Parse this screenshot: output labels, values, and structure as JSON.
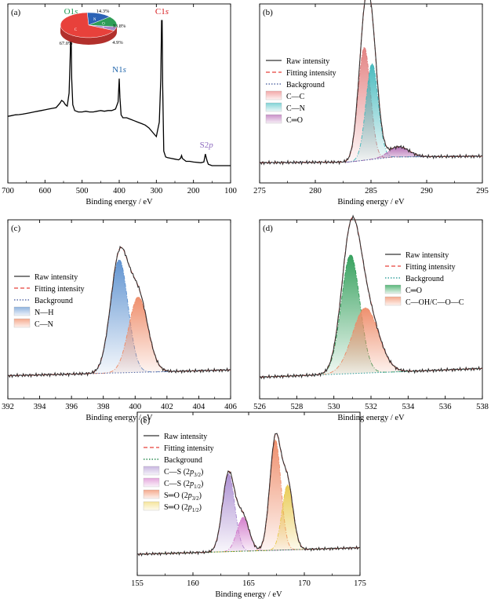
{
  "chart_data": [
    {
      "id": "a",
      "type": "line",
      "panel_label": "(a)",
      "xlabel": "Binding energy / eV",
      "ylabel": "",
      "xlim": [
        700,
        100
      ],
      "x_reversed": true,
      "x_ticks": [
        700,
        600,
        500,
        400,
        300,
        200,
        100
      ],
      "grid": false,
      "series": [
        {
          "color": "#000000",
          "x": [
            700,
            690,
            680,
            670,
            660,
            650,
            640,
            630,
            620,
            610,
            600,
            590,
            580,
            570,
            560,
            555,
            550,
            545,
            540,
            535,
            532,
            530,
            528,
            525,
            520,
            510,
            500,
            490,
            480,
            470,
            460,
            450,
            440,
            430,
            420,
            410,
            403,
            400,
            398,
            395,
            390,
            380,
            370,
            360,
            350,
            340,
            330,
            320,
            310,
            300,
            292,
            288,
            286,
            284.5,
            283,
            280,
            275,
            270,
            260,
            250,
            240,
            235,
            232,
            230,
            225,
            220,
            210,
            200,
            180,
            172,
            168,
            165,
            163,
            160,
            155,
            150,
            140,
            120,
            100
          ],
          "y": [
            0.34,
            0.345,
            0.35,
            0.352,
            0.355,
            0.36,
            0.365,
            0.37,
            0.375,
            0.38,
            0.385,
            0.39,
            0.395,
            0.4,
            0.43,
            0.45,
            0.44,
            0.42,
            0.41,
            0.5,
            0.75,
            1.0,
            0.6,
            0.42,
            0.38,
            0.37,
            0.37,
            0.375,
            0.37,
            0.37,
            0.375,
            0.38,
            0.375,
            0.38,
            0.38,
            0.39,
            0.44,
            0.6,
            0.47,
            0.35,
            0.33,
            0.33,
            0.32,
            0.31,
            0.3,
            0.29,
            0.28,
            0.26,
            0.23,
            0.2,
            0.3,
            0.6,
            1.0,
            1.0,
            0.55,
            0.1,
            0.06,
            0.055,
            0.05,
            0.045,
            0.04,
            0.05,
            0.07,
            0.05,
            0.04,
            0.03,
            0.03,
            0.025,
            0.02,
            0.025,
            0.08,
            0.05,
            0.03,
            0.01,
            0.005,
            0.0,
            0.0,
            0.0,
            0.0
          ]
        }
      ],
      "peak_labels": [
        {
          "text": "O1s",
          "x": 530,
          "color": "#1a9850"
        },
        {
          "text": "N1s",
          "x": 400,
          "color": "#2166ac"
        },
        {
          "text": "C1s",
          "x": 285,
          "color": "#d7191c"
        },
        {
          "text": "S2p",
          "x": 165,
          "color": "#8e6bbf"
        }
      ],
      "inset_pie": {
        "type": "pie",
        "slices": [
          {
            "slice_label": "C",
            "value": 67.0,
            "value_label": "67.0%",
            "color": "#e8413b"
          },
          {
            "slice_label": "N",
            "value": 14.3,
            "value_label": "14.3%",
            "color": "#2c63b5"
          },
          {
            "slice_label": "O",
            "value": 13.8,
            "value_label": "13.8%",
            "color": "#2e9d57"
          },
          {
            "slice_label": "S",
            "value": 4.9,
            "value_label": "4.9%",
            "color": "#a688c9"
          }
        ]
      }
    },
    {
      "id": "b",
      "type": "line",
      "panel_label": "(b)",
      "xlabel": "Binding energy / eV",
      "xlim": [
        275,
        295
      ],
      "x_ticks": [
        275,
        280,
        285,
        290,
        295
      ],
      "grid": false,
      "legend_position": "left",
      "legend": [
        {
          "label": "Raw intensity",
          "kind": "line",
          "color": "#333333"
        },
        {
          "label": "Fitting intensity",
          "kind": "dashed",
          "color": "#e8413b"
        },
        {
          "label": "Background",
          "kind": "dotted",
          "color": "#5b6ea8"
        },
        {
          "label": "C—C",
          "kind": "swatch",
          "color": "#f2a7a7"
        },
        {
          "label": "C—N",
          "kind": "swatch",
          "color": "#7fd3d6"
        },
        {
          "label": "C═O",
          "kind": "swatch",
          "color": "#c98fc8"
        }
      ],
      "background": {
        "x": [
          275,
          283,
          287,
          295
        ],
        "y": [
          0.02,
          0.025,
          0.06,
          0.065
        ]
      },
      "components": [
        {
          "name": "C—C",
          "center": 284.4,
          "height": 0.78,
          "width": 0.55,
          "color": "#e27d7d"
        },
        {
          "name": "C—N",
          "center": 285.1,
          "height": 0.66,
          "width": 0.55,
          "color": "#3fb7bb"
        },
        {
          "name": "C═O",
          "center": 287.5,
          "height": 0.07,
          "width": 0.9,
          "color": "#b36ab3"
        }
      ],
      "ylim": [
        0,
        1.05
      ]
    },
    {
      "id": "c",
      "type": "line",
      "panel_label": "(c)",
      "xlabel": "Binding energy / eV",
      "xlim": [
        392,
        406
      ],
      "x_ticks": [
        392,
        394,
        396,
        398,
        400,
        402,
        404,
        406
      ],
      "grid": false,
      "legend_position": "left",
      "legend": [
        {
          "label": "Raw intensity",
          "kind": "line",
          "color": "#333333"
        },
        {
          "label": "Fitting intensity",
          "kind": "dashed",
          "color": "#e8413b"
        },
        {
          "label": "Background",
          "kind": "dotted",
          "color": "#5b6ea8"
        },
        {
          "label": "N—H",
          "kind": "swatch",
          "color": "#8fb3df"
        },
        {
          "label": "C—N",
          "kind": "swatch",
          "color": "#f5a98c"
        }
      ],
      "background": {
        "x": [
          392,
          406
        ],
        "y": [
          0.04,
          0.08
        ]
      },
      "components": [
        {
          "name": "N—H",
          "center": 399.0,
          "height": 0.78,
          "width": 0.55,
          "color": "#5a8fcf"
        },
        {
          "name": "C—N",
          "center": 400.2,
          "height": 0.52,
          "width": 0.6,
          "color": "#ee8a66"
        }
      ],
      "ylim": [
        0,
        1.05
      ]
    },
    {
      "id": "d",
      "type": "line",
      "panel_label": "(d)",
      "xlabel": "Binding energy / eV",
      "xlim": [
        526,
        538
      ],
      "x_ticks": [
        526,
        528,
        530,
        532,
        534,
        536,
        538
      ],
      "grid": false,
      "legend_position": "right",
      "legend": [
        {
          "label": "Raw intensity",
          "kind": "line",
          "color": "#333333"
        },
        {
          "label": "Fitting intensity",
          "kind": "dashed",
          "color": "#e8413b"
        },
        {
          "label": "Background",
          "kind": "dotted",
          "color": "#3ba3a0"
        },
        {
          "label": "C═O",
          "kind": "swatch",
          "color": "#59b77a"
        },
        {
          "label": "C—OH/C—O—C",
          "kind": "swatch",
          "color": "#f5a98c"
        }
      ],
      "background": {
        "x": [
          526,
          538
        ],
        "y": [
          0.03,
          0.09
        ]
      },
      "components": [
        {
          "name": "C═O",
          "center": 530.9,
          "height": 0.82,
          "width": 0.5,
          "color": "#2e9d57"
        },
        {
          "name": "C—OH/C—O—C",
          "center": 531.7,
          "height": 0.45,
          "width": 0.7,
          "color": "#ee8a66"
        }
      ],
      "ylim": [
        0,
        1.05
      ]
    },
    {
      "id": "e",
      "type": "line",
      "panel_label": "(e)",
      "xlabel": "Binding energy / eV",
      "xlim": [
        155,
        175
      ],
      "x_ticks": [
        155,
        160,
        165,
        170,
        175
      ],
      "grid": false,
      "legend_position": "left",
      "legend": [
        {
          "label": "Raw intensity",
          "kind": "line",
          "color": "#333333"
        },
        {
          "label": "Fitting intensity",
          "kind": "dashed",
          "color": "#e8413b"
        },
        {
          "label": "Background",
          "kind": "dotted",
          "color": "#2f8d55"
        },
        {
          "label": "C—S (2p3/2)",
          "label_main": "C—S (2",
          "label_p": "p",
          "label_sub": "3/2",
          "kind": "swatch",
          "color": "#c8b6e0"
        },
        {
          "label": "C—S (2p1/2)",
          "label_main": "C—S (2",
          "label_p": "p",
          "label_sub": "1/2",
          "kind": "swatch",
          "color": "#e4a6dc"
        },
        {
          "label": "S═O (2p3/2)",
          "label_main": "S═O (2",
          "label_p": "p",
          "label_sub": "3/2",
          "kind": "swatch",
          "color": "#f5a98c"
        },
        {
          "label": "S═O (2p1/2)",
          "label_main": "S═O (2",
          "label_p": "p",
          "label_sub": "1/2",
          "kind": "swatch",
          "color": "#f6e59a"
        }
      ],
      "background": {
        "x": [
          155,
          175
        ],
        "y": [
          0.03,
          0.08
        ]
      },
      "components": [
        {
          "name": "C—S (2p3/2)",
          "center": 163.2,
          "height": 0.6,
          "width": 0.55,
          "color": "#a98bd0"
        },
        {
          "name": "C—S (2p1/2)",
          "center": 164.5,
          "height": 0.26,
          "width": 0.55,
          "color": "#d27acb"
        },
        {
          "name": "S═O (2p3/2)",
          "center": 167.4,
          "height": 0.85,
          "width": 0.5,
          "color": "#ee8a66"
        },
        {
          "name": "S═O (2p1/2)",
          "center": 168.5,
          "height": 0.5,
          "width": 0.5,
          "color": "#e8c84a"
        }
      ],
      "ylim": [
        0,
        1.05
      ]
    }
  ]
}
